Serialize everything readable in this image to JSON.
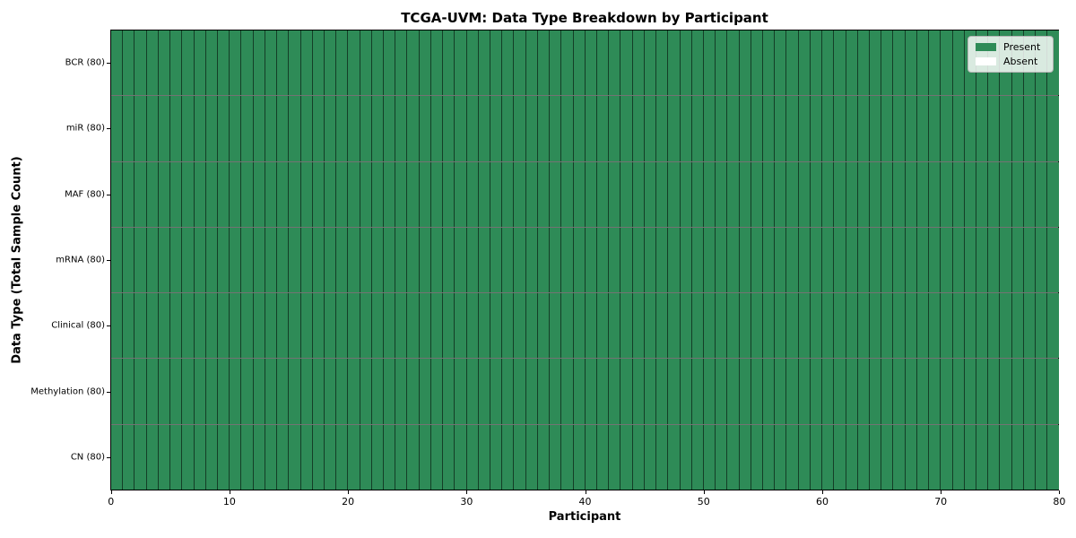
{
  "chart_data": {
    "type": "heatmap",
    "title": "TCGA-UVM: Data Type Breakdown by Participant",
    "xlabel": "Participant",
    "ylabel": "Data Type (Total Sample Count)",
    "xlim": [
      0,
      80
    ],
    "x_ticks": [
      0,
      10,
      20,
      30,
      40,
      50,
      60,
      70,
      80
    ],
    "n_participants": 80,
    "grid_on": true,
    "rows": [
      {
        "label": "BCR (80)",
        "data_type": "BCR",
        "total_samples": 80,
        "present_count": 80
      },
      {
        "label": "miR (80)",
        "data_type": "miR",
        "total_samples": 80,
        "present_count": 80
      },
      {
        "label": "MAF (80)",
        "data_type": "MAF",
        "total_samples": 80,
        "present_count": 80
      },
      {
        "label": "mRNA (80)",
        "data_type": "mRNA",
        "total_samples": 80,
        "present_count": 80
      },
      {
        "label": "Clinical (80)",
        "data_type": "Clinical",
        "total_samples": 80,
        "present_count": 80
      },
      {
        "label": "Methylation (80)",
        "data_type": "Methylation",
        "total_samples": 80,
        "present_count": 80
      },
      {
        "label": "CN (80)",
        "data_type": "CN",
        "total_samples": 80,
        "present_count": 80
      }
    ],
    "legend": {
      "position": "upper right",
      "entries": [
        {
          "label": "Present",
          "color": "#2e8b57"
        },
        {
          "label": "Absent",
          "color": "#ffffff"
        }
      ]
    },
    "colors": {
      "present": "#2e8b57",
      "absent": "#ffffff",
      "cell_border": "rgba(0,0,0,0.55)",
      "spine": "#000000"
    }
  }
}
